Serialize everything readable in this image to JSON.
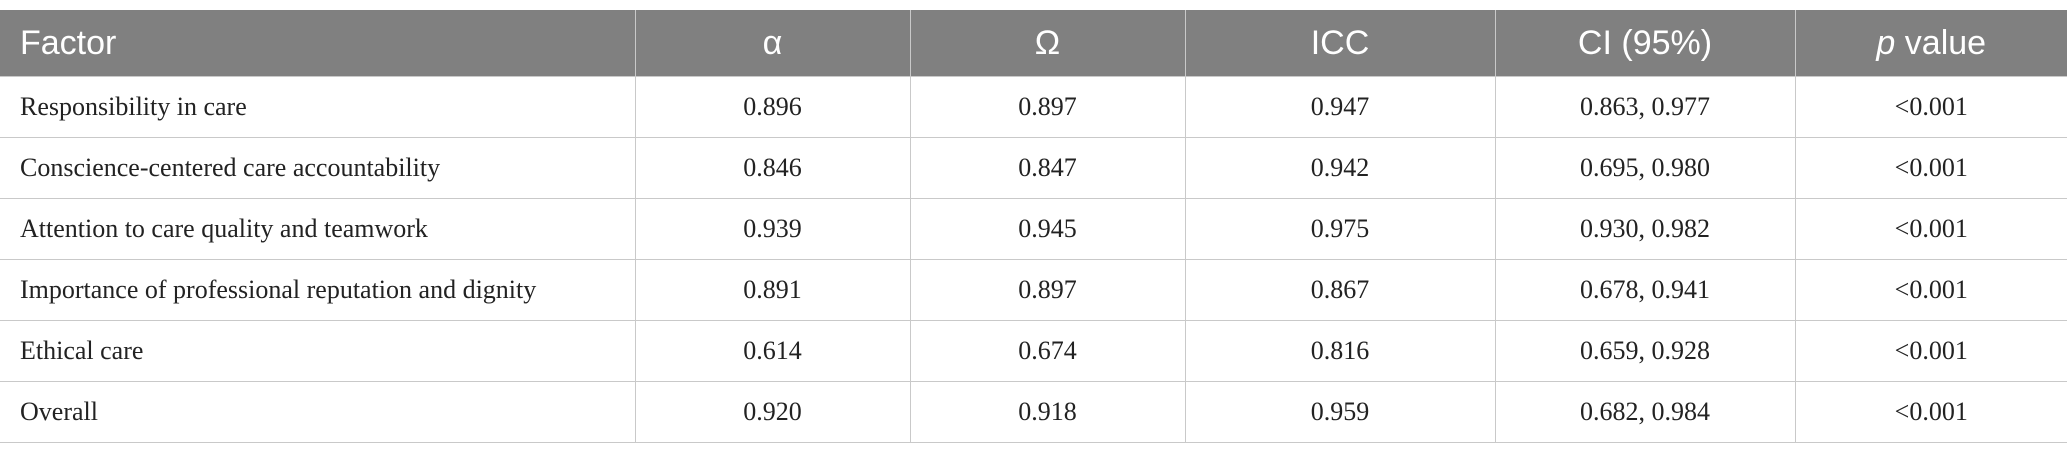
{
  "table": {
    "header": [
      "Factor",
      "α",
      "Ω",
      "ICC",
      "CI (95%)"
    ],
    "p_header": {
      "italic": "p",
      "rest": "value"
    },
    "rows": [
      [
        "Responsibility in care",
        "0.896",
        "0.897",
        "0.947",
        "0.863, 0.977",
        "<0.001"
      ],
      [
        "Conscience-centered care accountability",
        "0.846",
        "0.847",
        "0.942",
        "0.695, 0.980",
        "<0.001"
      ],
      [
        "Attention to care quality and teamwork",
        "0.939",
        "0.945",
        "0.975",
        "0.930, 0.982",
        "<0.001"
      ],
      [
        "Importance of professional reputation and dignity",
        "0.891",
        "0.897",
        "0.867",
        "0.678, 0.941",
        "<0.001"
      ],
      [
        "Ethical care",
        "0.614",
        "0.674",
        "0.816",
        "0.659, 0.928",
        "<0.001"
      ],
      [
        "Overall",
        "0.920",
        "0.918",
        "0.959",
        "0.682, 0.984",
        "<0.001"
      ]
    ]
  }
}
